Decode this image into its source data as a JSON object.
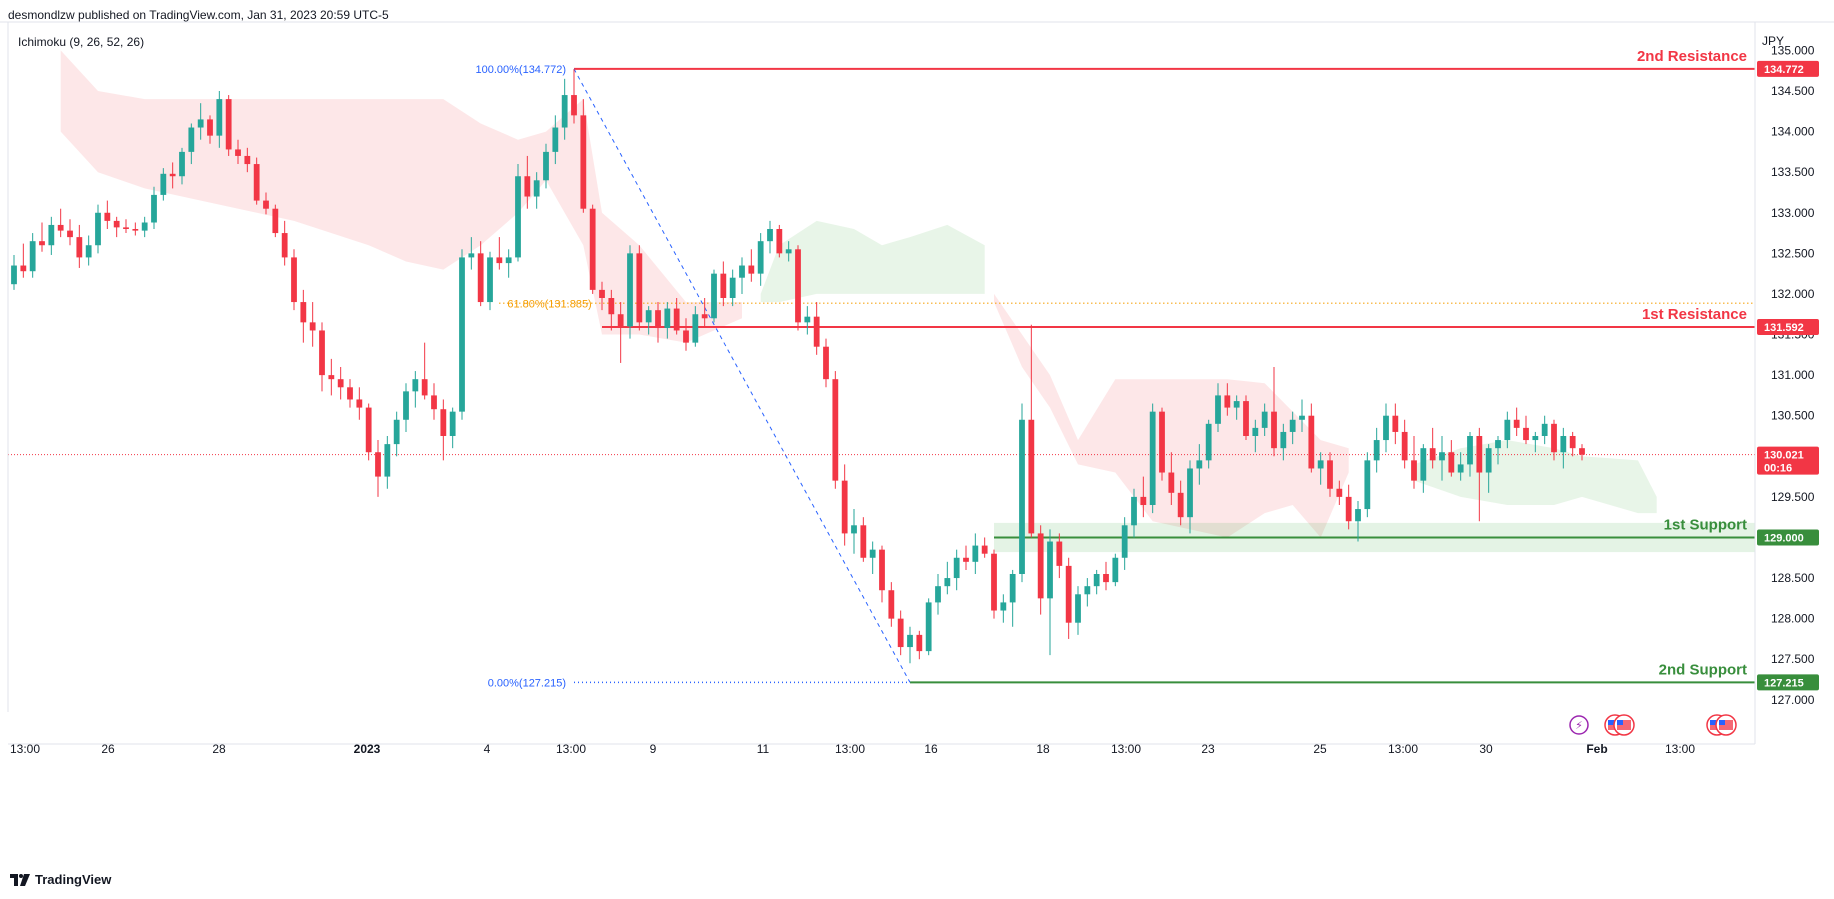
{
  "header": {
    "published": "desmondlzw published on TradingView.com, Jan 31, 2023 20:59 UTC-5"
  },
  "indicator": {
    "label": "Ichimoku (9, 26, 52, 26)"
  },
  "currency": "JPY",
  "footer": {
    "brand": "TradingView",
    "logo": "tradingview-logo-icon"
  },
  "colors": {
    "up": "#26a69a",
    "down": "#f23645",
    "resistance": "#f23645",
    "support": "#388e3c",
    "fib": "#2962ff",
    "fib61": "#f59d00"
  },
  "chart_data": {
    "type": "candlestick",
    "ylim": [
      126.85,
      135.35
    ],
    "y_ticks": [
      "127.000",
      "127.500",
      "128.000",
      "128.500",
      "129.000",
      "129.500",
      "130.000",
      "130.500",
      "131.000",
      "131.500",
      "132.000",
      "132.500",
      "133.000",
      "133.500",
      "134.000",
      "134.500",
      "135.000"
    ],
    "x_ticks": [
      "13:00",
      "26",
      "28",
      "2023",
      "4",
      "13:00",
      "9",
      "11",
      "13:00",
      "16",
      "18",
      "13:00",
      "23",
      "25",
      "13:00",
      "30",
      "Feb",
      "13:00"
    ],
    "levels": {
      "r2": {
        "label": "2nd Resistance",
        "value": 134.772,
        "tag": "134.772"
      },
      "r1": {
        "label": "1st Resistance",
        "value": 131.592,
        "tag": "131.592"
      },
      "s1": {
        "label": "1st Support",
        "value": 129.0,
        "tag": "129.000"
      },
      "s2": {
        "label": "2nd Support",
        "value": 127.215,
        "tag": "127.215"
      }
    },
    "current": {
      "value": 130.021,
      "tag": "130.021",
      "countdown": "00:16"
    },
    "fib": {
      "high": {
        "label": "100.00%(134.772)",
        "value": 134.772
      },
      "f618": {
        "label": "61.80%(131.885)",
        "value": 131.885
      },
      "low": {
        "label": "0.00%(127.215)",
        "value": 127.215
      }
    },
    "candles": [
      [
        132.12,
        132.48,
        132.05,
        132.35
      ],
      [
        132.35,
        132.62,
        132.2,
        132.28
      ],
      [
        132.28,
        132.75,
        132.2,
        132.65
      ],
      [
        132.65,
        132.88,
        132.52,
        132.6
      ],
      [
        132.6,
        132.95,
        132.48,
        132.85
      ],
      [
        132.85,
        133.05,
        132.7,
        132.78
      ],
      [
        132.78,
        132.92,
        132.6,
        132.7
      ],
      [
        132.7,
        132.85,
        132.32,
        132.45
      ],
      [
        132.45,
        132.72,
        132.35,
        132.6
      ],
      [
        132.6,
        133.1,
        132.5,
        133.0
      ],
      [
        133.0,
        133.15,
        132.8,
        132.9
      ],
      [
        132.9,
        132.95,
        132.7,
        132.82
      ],
      [
        132.82,
        132.92,
        132.75,
        132.8
      ],
      [
        132.8,
        132.88,
        132.72,
        132.78
      ],
      [
        132.78,
        132.95,
        132.7,
        132.88
      ],
      [
        132.88,
        133.32,
        132.8,
        133.22
      ],
      [
        133.22,
        133.55,
        133.15,
        133.48
      ],
      [
        133.48,
        133.62,
        133.3,
        133.45
      ],
      [
        133.45,
        133.8,
        133.35,
        133.75
      ],
      [
        133.75,
        134.1,
        133.6,
        134.05
      ],
      [
        134.05,
        134.35,
        133.9,
        134.15
      ],
      [
        134.15,
        134.2,
        133.85,
        133.95
      ],
      [
        133.95,
        134.5,
        133.8,
        134.4
      ],
      [
        134.4,
        134.45,
        133.7,
        133.78
      ],
      [
        133.78,
        133.9,
        133.6,
        133.7
      ],
      [
        133.7,
        133.8,
        133.5,
        133.6
      ],
      [
        133.6,
        133.68,
        133.1,
        133.15
      ],
      [
        133.15,
        133.25,
        132.98,
        133.05
      ],
      [
        133.05,
        133.1,
        132.7,
        132.75
      ],
      [
        132.75,
        132.9,
        132.35,
        132.45
      ],
      [
        132.45,
        132.55,
        131.8,
        131.9
      ],
      [
        131.9,
        132.05,
        131.4,
        131.65
      ],
      [
        131.65,
        131.9,
        131.35,
        131.55
      ],
      [
        131.55,
        131.65,
        130.8,
        131.0
      ],
      [
        131.0,
        131.2,
        130.75,
        130.95
      ],
      [
        130.95,
        131.1,
        130.7,
        130.85
      ],
      [
        130.85,
        130.95,
        130.6,
        130.7
      ],
      [
        130.7,
        130.85,
        130.45,
        130.6
      ],
      [
        130.6,
        130.65,
        129.95,
        130.05
      ],
      [
        130.05,
        130.2,
        129.5,
        129.75
      ],
      [
        129.75,
        130.25,
        129.6,
        130.15
      ],
      [
        130.15,
        130.55,
        130.0,
        130.45
      ],
      [
        130.45,
        130.9,
        130.3,
        130.8
      ],
      [
        130.8,
        131.05,
        130.6,
        130.95
      ],
      [
        130.95,
        131.4,
        130.7,
        130.75
      ],
      [
        130.75,
        130.9,
        130.45,
        130.58
      ],
      [
        130.58,
        130.7,
        129.95,
        130.25
      ],
      [
        130.25,
        130.6,
        130.1,
        130.55
      ],
      [
        130.55,
        132.55,
        130.45,
        132.45
      ],
      [
        132.45,
        132.7,
        132.3,
        132.5
      ],
      [
        132.5,
        132.65,
        131.85,
        131.9
      ],
      [
        131.9,
        132.52,
        131.8,
        132.45
      ],
      [
        132.45,
        132.7,
        132.3,
        132.38
      ],
      [
        132.38,
        132.55,
        132.2,
        132.45
      ],
      [
        132.45,
        133.6,
        132.4,
        133.45
      ],
      [
        133.45,
        133.7,
        133.05,
        133.2
      ],
      [
        133.2,
        133.5,
        133.05,
        133.4
      ],
      [
        133.4,
        133.85,
        133.3,
        133.75
      ],
      [
        133.75,
        134.2,
        133.6,
        134.05
      ],
      [
        134.05,
        134.65,
        133.9,
        134.45
      ],
      [
        134.45,
        134.77,
        134.1,
        134.2
      ],
      [
        134.2,
        134.4,
        133.0,
        133.05
      ],
      [
        133.05,
        133.1,
        132.0,
        132.05
      ],
      [
        132.05,
        132.15,
        131.8,
        131.95
      ],
      [
        131.95,
        132.05,
        131.55,
        131.75
      ],
      [
        131.75,
        131.9,
        131.15,
        131.6
      ],
      [
        131.6,
        132.6,
        131.45,
        132.5
      ],
      [
        132.5,
        132.6,
        131.55,
        131.65
      ],
      [
        131.65,
        131.85,
        131.5,
        131.8
      ],
      [
        131.8,
        131.9,
        131.4,
        131.58
      ],
      [
        131.58,
        131.9,
        131.45,
        131.82
      ],
      [
        131.82,
        131.95,
        131.5,
        131.55
      ],
      [
        131.55,
        131.7,
        131.3,
        131.4
      ],
      [
        131.4,
        131.85,
        131.35,
        131.75
      ],
      [
        131.75,
        131.95,
        131.6,
        131.7
      ],
      [
        131.7,
        132.3,
        131.65,
        132.25
      ],
      [
        132.25,
        132.4,
        131.85,
        131.95
      ],
      [
        131.95,
        132.3,
        131.85,
        132.2
      ],
      [
        132.2,
        132.45,
        132.0,
        132.35
      ],
      [
        132.35,
        132.55,
        132.15,
        132.25
      ],
      [
        132.25,
        132.75,
        132.1,
        132.65
      ],
      [
        132.65,
        132.9,
        132.5,
        132.8
      ],
      [
        132.8,
        132.85,
        132.45,
        132.5
      ],
      [
        132.5,
        132.65,
        132.4,
        132.55
      ],
      [
        132.55,
        132.6,
        131.55,
        131.65
      ],
      [
        131.65,
        131.85,
        131.5,
        131.72
      ],
      [
        131.72,
        131.9,
        131.25,
        131.35
      ],
      [
        131.35,
        131.45,
        130.85,
        130.95
      ],
      [
        130.95,
        131.05,
        129.6,
        129.7
      ],
      [
        129.7,
        129.9,
        128.9,
        129.05
      ],
      [
        129.05,
        129.35,
        128.8,
        129.15
      ],
      [
        129.15,
        129.25,
        128.7,
        128.75
      ],
      [
        128.75,
        128.95,
        128.55,
        128.85
      ],
      [
        128.85,
        128.9,
        128.2,
        128.35
      ],
      [
        128.35,
        128.45,
        127.9,
        128.0
      ],
      [
        128.0,
        128.1,
        127.55,
        127.65
      ],
      [
        127.65,
        127.9,
        127.45,
        127.8
      ],
      [
        127.8,
        127.85,
        127.5,
        127.6
      ],
      [
        127.6,
        128.25,
        127.55,
        128.2
      ],
      [
        128.2,
        128.55,
        128.05,
        128.4
      ],
      [
        128.4,
        128.7,
        128.3,
        128.5
      ],
      [
        128.5,
        128.85,
        128.35,
        128.75
      ],
      [
        128.75,
        128.9,
        128.6,
        128.7
      ],
      [
        128.7,
        129.05,
        128.55,
        128.9
      ],
      [
        128.9,
        129.0,
        128.75,
        128.8
      ],
      [
        128.8,
        128.85,
        128.0,
        128.1
      ],
      [
        128.1,
        128.3,
        127.95,
        128.2
      ],
      [
        128.2,
        128.6,
        127.9,
        128.55
      ],
      [
        128.55,
        130.65,
        128.45,
        130.45
      ],
      [
        130.45,
        131.62,
        129.0,
        129.05
      ],
      [
        129.05,
        129.15,
        128.05,
        128.25
      ],
      [
        128.25,
        129.1,
        127.55,
        128.95
      ],
      [
        128.95,
        129.05,
        128.5,
        128.65
      ],
      [
        128.65,
        128.75,
        127.75,
        127.95
      ],
      [
        127.95,
        128.4,
        127.8,
        128.3
      ],
      [
        128.3,
        128.5,
        128.15,
        128.4
      ],
      [
        128.4,
        128.6,
        128.3,
        128.55
      ],
      [
        128.55,
        128.7,
        128.35,
        128.45
      ],
      [
        128.45,
        128.8,
        128.4,
        128.75
      ],
      [
        128.75,
        129.25,
        128.6,
        129.15
      ],
      [
        129.15,
        129.6,
        129.0,
        129.5
      ],
      [
        129.5,
        129.75,
        129.25,
        129.4
      ],
      [
        129.4,
        130.65,
        129.3,
        130.55
      ],
      [
        130.55,
        130.6,
        129.7,
        129.8
      ],
      [
        129.8,
        130.05,
        129.4,
        129.55
      ],
      [
        129.55,
        129.7,
        129.15,
        129.25
      ],
      [
        129.25,
        129.95,
        129.05,
        129.85
      ],
      [
        129.85,
        130.15,
        129.65,
        129.95
      ],
      [
        129.95,
        130.45,
        129.85,
        130.4
      ],
      [
        130.4,
        130.9,
        130.3,
        130.75
      ],
      [
        130.75,
        130.9,
        130.5,
        130.6
      ],
      [
        130.6,
        130.75,
        130.45,
        130.68
      ],
      [
        130.68,
        130.75,
        130.2,
        130.25
      ],
      [
        130.25,
        130.45,
        130.05,
        130.35
      ],
      [
        130.35,
        130.65,
        130.25,
        130.55
      ],
      [
        130.55,
        131.1,
        130.0,
        130.1
      ],
      [
        130.1,
        130.4,
        129.95,
        130.3
      ],
      [
        130.3,
        130.55,
        130.15,
        130.45
      ],
      [
        130.45,
        130.7,
        130.3,
        130.5
      ],
      [
        130.5,
        130.65,
        129.8,
        129.85
      ],
      [
        129.85,
        130.05,
        129.65,
        129.95
      ],
      [
        129.95,
        130.05,
        129.5,
        129.6
      ],
      [
        129.6,
        129.7,
        129.4,
        129.5
      ],
      [
        129.5,
        129.65,
        129.1,
        129.2
      ],
      [
        129.2,
        129.45,
        128.95,
        129.35
      ],
      [
        129.35,
        130.05,
        129.25,
        129.95
      ],
      [
        129.95,
        130.35,
        129.8,
        130.2
      ],
      [
        130.2,
        130.65,
        130.05,
        130.5
      ],
      [
        130.5,
        130.65,
        130.15,
        130.3
      ],
      [
        130.3,
        130.45,
        129.85,
        129.95
      ],
      [
        129.95,
        130.25,
        129.6,
        129.7
      ],
      [
        129.7,
        130.15,
        129.55,
        130.1
      ],
      [
        130.1,
        130.35,
        129.85,
        129.95
      ],
      [
        129.95,
        130.25,
        129.7,
        130.05
      ],
      [
        130.05,
        130.2,
        129.75,
        129.8
      ],
      [
        129.8,
        130.05,
        129.7,
        129.9
      ],
      [
        129.9,
        130.3,
        129.75,
        130.25
      ],
      [
        130.25,
        130.35,
        129.2,
        129.8
      ],
      [
        129.8,
        130.15,
        129.55,
        130.1
      ],
      [
        130.1,
        130.25,
        129.9,
        130.2
      ],
      [
        130.2,
        130.55,
        130.1,
        130.45
      ],
      [
        130.45,
        130.6,
        130.25,
        130.35
      ],
      [
        130.35,
        130.5,
        130.15,
        130.2
      ],
      [
        130.2,
        130.3,
        130.05,
        130.25
      ],
      [
        130.25,
        130.5,
        130.15,
        130.4
      ],
      [
        130.4,
        130.45,
        129.95,
        130.05
      ],
      [
        130.05,
        130.35,
        129.85,
        130.25
      ],
      [
        130.25,
        130.3,
        130.0,
        130.1
      ],
      [
        130.1,
        130.15,
        129.95,
        130.02
      ]
    ],
    "cloud_red": [
      [
        5,
        135.0,
        134.0
      ],
      [
        9,
        134.5,
        133.5
      ],
      [
        14,
        134.4,
        133.3
      ],
      [
        22,
        134.4,
        133.1
      ],
      [
        30,
        134.4,
        132.9
      ],
      [
        38,
        134.4,
        132.6
      ],
      [
        42,
        134.4,
        132.4
      ],
      [
        46,
        134.4,
        132.3
      ],
      [
        50,
        134.1,
        132.6
      ],
      [
        54,
        133.9,
        133.0
      ],
      [
        57,
        134.0,
        133.4
      ],
      [
        61,
        134.4,
        132.6
      ],
      [
        63,
        133.0,
        131.5
      ],
      [
        67,
        132.6,
        131.5
      ],
      [
        72,
        131.9,
        131.4
      ],
      [
        78,
        131.9,
        131.7
      ]
    ],
    "cloud_green": [
      [
        80,
        132.0,
        131.9
      ],
      [
        82,
        132.6,
        131.9
      ],
      [
        86,
        132.9,
        132.0
      ],
      [
        90,
        132.8,
        132.0
      ],
      [
        93,
        132.6,
        132.0
      ],
      [
        96,
        132.7,
        132.0
      ],
      [
        100,
        132.85,
        132.0
      ],
      [
        104,
        132.6,
        132.0
      ]
    ],
    "cloud_red2": [
      [
        105,
        132.0,
        131.9
      ],
      [
        108,
        131.5,
        131.1
      ],
      [
        111,
        131.0,
        130.6
      ],
      [
        114,
        130.2,
        129.9
      ],
      [
        118,
        130.95,
        129.8
      ],
      [
        122,
        130.95,
        129.2
      ],
      [
        126,
        130.95,
        129.1
      ],
      [
        130,
        130.95,
        129.0
      ],
      [
        134,
        130.9,
        129.3
      ],
      [
        137,
        130.55,
        129.4
      ],
      [
        140,
        130.2,
        129.0
      ],
      [
        143,
        130.1,
        129.8
      ]
    ],
    "cloud_green2": [
      [
        150,
        129.9,
        129.7
      ],
      [
        155,
        130.1,
        129.5
      ],
      [
        160,
        130.2,
        129.4
      ],
      [
        165,
        130.1,
        129.4
      ],
      [
        168,
        130.0,
        129.5
      ],
      [
        174,
        129.95,
        129.3
      ],
      [
        176,
        129.5,
        129.3
      ]
    ]
  }
}
